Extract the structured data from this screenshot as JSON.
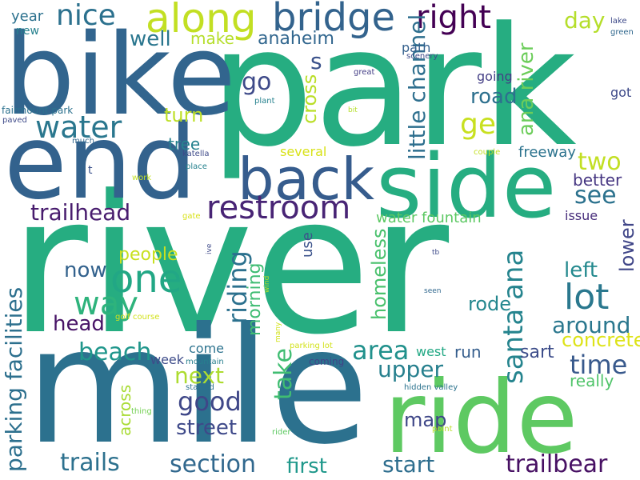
{
  "background_color": "#ffffff",
  "palette": [
    "#440154",
    "#482878",
    "#3e4a89",
    "#31688e",
    "#26828e",
    "#1f9e89",
    "#35b779",
    "#6ece58",
    "#b5de2b",
    "#fde725"
  ],
  "words": [
    {
      "text": "river",
      "color": "#26ad81"
    },
    {
      "text": "park",
      "color": "#26ad81"
    },
    {
      "text": "mile",
      "color": "#2c718e"
    },
    {
      "text": "bike",
      "color": "#32658e"
    },
    {
      "text": "end",
      "color": "#33628d"
    },
    {
      "text": "ride",
      "color": "#5ec962"
    },
    {
      "text": "side",
      "color": "#26ad81"
    },
    {
      "text": "back",
      "color": "#365c8d"
    },
    {
      "text": "restroom",
      "color": "#482475"
    },
    {
      "text": "bridge",
      "color": "#33638d"
    },
    {
      "text": "along",
      "color": "#c2df23"
    },
    {
      "text": "right",
      "color": "#440154"
    },
    {
      "text": "one",
      "color": "#22a785"
    },
    {
      "text": "water",
      "color": "#2a778e"
    },
    {
      "text": "nice",
      "color": "#2c718e"
    },
    {
      "text": "way",
      "color": "#2eb37c"
    },
    {
      "text": "lot",
      "color": "#2a788e"
    },
    {
      "text": "santa ana",
      "color": "#25848e"
    },
    {
      "text": "parking facilities",
      "color": "#2d708e"
    },
    {
      "text": "trailhead",
      "color": "#481c6e"
    },
    {
      "text": "beach",
      "color": "#1f968b"
    },
    {
      "text": "little channel",
      "color": "#2e6f8e"
    },
    {
      "text": "ana river",
      "color": "#6ccd5a"
    },
    {
      "text": "ge",
      "color": "#c8e020"
    },
    {
      "text": "s",
      "color": "#3b528b"
    },
    {
      "text": "go",
      "color": "#3e4a89"
    },
    {
      "text": "well",
      "color": "#2a768e"
    },
    {
      "text": "anaheim",
      "color": "#31668e"
    },
    {
      "text": "make",
      "color": "#b5de2b"
    },
    {
      "text": "day",
      "color": "#b5de2b"
    },
    {
      "text": "year",
      "color": "#2c718e"
    },
    {
      "text": "new",
      "color": "#26818e"
    },
    {
      "text": "two",
      "color": "#c2df23"
    },
    {
      "text": "see",
      "color": "#2c728e"
    },
    {
      "text": "better",
      "color": "#453581"
    },
    {
      "text": "riding",
      "color": "#2c718e"
    },
    {
      "text": "cross",
      "color": "#bade28"
    },
    {
      "text": "road",
      "color": "#2d708e"
    },
    {
      "text": "going",
      "color": "#433e85"
    },
    {
      "text": "path",
      "color": "#34608d"
    },
    {
      "text": "turn",
      "color": "#bddf26"
    },
    {
      "text": "tree",
      "color": "#26828e"
    },
    {
      "text": "several",
      "color": "#d8e219"
    },
    {
      "text": "freeway",
      "color": "#2c738e"
    },
    {
      "text": "area",
      "color": "#21918c"
    },
    {
      "text": "homeless",
      "color": "#4ac16d"
    },
    {
      "text": "upper",
      "color": "#27808e"
    },
    {
      "text": "rode",
      "color": "#24878e"
    },
    {
      "text": "around",
      "color": "#2a778e"
    },
    {
      "text": "left",
      "color": "#23898e"
    },
    {
      "text": "lower",
      "color": "#404688"
    },
    {
      "text": "concrete",
      "color": "#dde318"
    },
    {
      "text": "time",
      "color": "#38598c"
    },
    {
      "text": "really",
      "color": "#50c46a"
    },
    {
      "text": "sart",
      "color": "#3d4d8a"
    },
    {
      "text": "run",
      "color": "#355e8d"
    },
    {
      "text": "people",
      "color": "#c8e020"
    },
    {
      "text": "now",
      "color": "#33628d"
    },
    {
      "text": "head",
      "color": "#481467"
    },
    {
      "text": "morning",
      "color": "#3fbc73"
    },
    {
      "text": "take",
      "color": "#40bd72"
    },
    {
      "text": "next",
      "color": "#addc30"
    },
    {
      "text": "good",
      "color": "#3f4788"
    },
    {
      "text": "street",
      "color": "#3e4989"
    },
    {
      "text": "map",
      "color": "#3f4788"
    },
    {
      "text": "start",
      "color": "#2e6e8e"
    },
    {
      "text": "section",
      "color": "#31688e"
    },
    {
      "text": "first",
      "color": "#1f988b"
    },
    {
      "text": "trails",
      "color": "#2d718e"
    },
    {
      "text": "trailbear",
      "color": "#471063"
    },
    {
      "text": "use",
      "color": "#3b528b"
    },
    {
      "text": "water fountain",
      "color": "#5cc863"
    },
    {
      "text": "issue",
      "color": "#472d7b"
    },
    {
      "text": "across",
      "color": "#a8db34"
    },
    {
      "text": "week",
      "color": "#3e4c8a"
    },
    {
      "text": "come",
      "color": "#2c728e"
    },
    {
      "text": "west",
      "color": "#22a884"
    },
    {
      "text": "coming",
      "color": "#414487"
    },
    {
      "text": "mountain",
      "color": "#277f8e"
    },
    {
      "text": "started",
      "color": "#2d708e"
    },
    {
      "text": "thing",
      "color": "#75d054"
    },
    {
      "text": "rider",
      "color": "#5ec962"
    },
    {
      "text": "point",
      "color": "#bade28"
    },
    {
      "text": "hidden valley",
      "color": "#2c738e"
    },
    {
      "text": "parking lot",
      "color": "#d2e21b"
    },
    {
      "text": "golf course",
      "color": "#d2e21b"
    },
    {
      "text": "many",
      "color": "#d2e21b"
    },
    {
      "text": "wind",
      "color": "#b5de2b"
    },
    {
      "text": "ive",
      "color": "#3e4a89"
    },
    {
      "text": "tb",
      "color": "#3e4a89"
    },
    {
      "text": "seen",
      "color": "#31688e"
    },
    {
      "text": "gate",
      "color": "#d8e219"
    },
    {
      "text": "work",
      "color": "#c2df23"
    },
    {
      "text": "t",
      "color": "#3b528b"
    },
    {
      "text": "much",
      "color": "#31688e"
    },
    {
      "text": "place",
      "color": "#26828e"
    },
    {
      "text": "katella",
      "color": "#3e4a89"
    },
    {
      "text": "couple",
      "color": "#c2df23"
    },
    {
      "text": "bit",
      "color": "#b5de2b"
    },
    {
      "text": "plant",
      "color": "#26828e"
    },
    {
      "text": "great",
      "color": "#433e85"
    },
    {
      "text": "scenery",
      "color": "#3e4a89"
    },
    {
      "text": "fairmount park",
      "color": "#2c718e"
    },
    {
      "text": "paved",
      "color": "#3e4a89"
    },
    {
      "text": "got",
      "color": "#3e4a89"
    },
    {
      "text": "lake",
      "color": "#3e4a89"
    },
    {
      "text": "green",
      "color": "#31688e"
    }
  ]
}
